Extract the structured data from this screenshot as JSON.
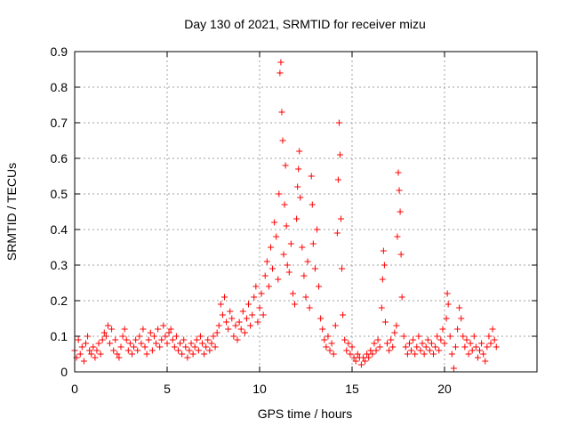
{
  "chart_data": {
    "type": "scatter",
    "title": "Day 130 of 2021, SRMTID for receiver mizu",
    "xlabel": "GPS time / hours",
    "ylabel": "SRMTID / TECUs",
    "xlim": [
      0,
      25
    ],
    "ylim": [
      0,
      0.9
    ],
    "xticks": [
      0,
      5,
      10,
      15,
      20
    ],
    "xtick_labels": [
      "0",
      "5",
      "10",
      "15",
      "20"
    ],
    "yticks": [
      0,
      0.1,
      0.2,
      0.3,
      0.4,
      0.5,
      0.6,
      0.7,
      0.8,
      0.9
    ],
    "ytick_labels": [
      "0",
      "0.1",
      "0.2",
      "0.3",
      "0.4",
      "0.5",
      "0.6",
      "0.7",
      "0.8",
      "0.9"
    ],
    "grid": true,
    "marker": "plus",
    "color": "#ff0000",
    "series": [
      {
        "name": "SRMTID",
        "points": [
          [
            0.0,
            0.06
          ],
          [
            0.1,
            0.04
          ],
          [
            0.2,
            0.09
          ],
          [
            0.3,
            0.05
          ],
          [
            0.4,
            0.07
          ],
          [
            0.5,
            0.03
          ],
          [
            0.6,
            0.08
          ],
          [
            0.7,
            0.1
          ],
          [
            0.8,
            0.06
          ],
          [
            0.9,
            0.05
          ],
          [
            1.0,
            0.07
          ],
          [
            1.1,
            0.04
          ],
          [
            1.2,
            0.06
          ],
          [
            1.3,
            0.08
          ],
          [
            1.4,
            0.05
          ],
          [
            1.5,
            0.09
          ],
          [
            1.6,
            0.11
          ],
          [
            1.7,
            0.1
          ],
          [
            1.8,
            0.13
          ],
          [
            1.9,
            0.08
          ],
          [
            2.0,
            0.12
          ],
          [
            2.1,
            0.06
          ],
          [
            2.2,
            0.09
          ],
          [
            2.3,
            0.05
          ],
          [
            2.4,
            0.04
          ],
          [
            2.5,
            0.07
          ],
          [
            2.6,
            0.1
          ],
          [
            2.7,
            0.12
          ],
          [
            2.8,
            0.09
          ],
          [
            2.9,
            0.06
          ],
          [
            3.0,
            0.08
          ],
          [
            3.1,
            0.05
          ],
          [
            3.2,
            0.07
          ],
          [
            3.3,
            0.09
          ],
          [
            3.4,
            0.06
          ],
          [
            3.5,
            0.1
          ],
          [
            3.6,
            0.08
          ],
          [
            3.7,
            0.12
          ],
          [
            3.8,
            0.07
          ],
          [
            3.9,
            0.05
          ],
          [
            4.0,
            0.09
          ],
          [
            4.1,
            0.11
          ],
          [
            4.2,
            0.06
          ],
          [
            4.3,
            0.1
          ],
          [
            4.4,
            0.08
          ],
          [
            4.5,
            0.12
          ],
          [
            4.6,
            0.07
          ],
          [
            4.7,
            0.09
          ],
          [
            4.8,
            0.13
          ],
          [
            4.9,
            0.1
          ],
          [
            5.0,
            0.08
          ],
          [
            5.1,
            0.11
          ],
          [
            5.2,
            0.12
          ],
          [
            5.3,
            0.09
          ],
          [
            5.4,
            0.07
          ],
          [
            5.5,
            0.1
          ],
          [
            5.6,
            0.06
          ],
          [
            5.7,
            0.08
          ],
          [
            5.8,
            0.05
          ],
          [
            5.9,
            0.09
          ],
          [
            6.0,
            0.07
          ],
          [
            6.1,
            0.04
          ],
          [
            6.2,
            0.06
          ],
          [
            6.3,
            0.08
          ],
          [
            6.4,
            0.05
          ],
          [
            6.5,
            0.07
          ],
          [
            6.6,
            0.09
          ],
          [
            6.7,
            0.06
          ],
          [
            6.8,
            0.1
          ],
          [
            6.9,
            0.08
          ],
          [
            7.0,
            0.05
          ],
          [
            7.1,
            0.07
          ],
          [
            7.2,
            0.09
          ],
          [
            7.3,
            0.06
          ],
          [
            7.4,
            0.08
          ],
          [
            7.5,
            0.1
          ],
          [
            7.6,
            0.07
          ],
          [
            7.7,
            0.11
          ],
          [
            7.8,
            0.13
          ],
          [
            7.9,
            0.19
          ],
          [
            8.0,
            0.16
          ],
          [
            8.1,
            0.21
          ],
          [
            8.2,
            0.14
          ],
          [
            8.3,
            0.12
          ],
          [
            8.4,
            0.17
          ],
          [
            8.5,
            0.15
          ],
          [
            8.6,
            0.1
          ],
          [
            8.7,
            0.13
          ],
          [
            8.8,
            0.09
          ],
          [
            8.9,
            0.14
          ],
          [
            9.0,
            0.12
          ],
          [
            9.1,
            0.17
          ],
          [
            9.2,
            0.11
          ],
          [
            9.3,
            0.15
          ],
          [
            9.4,
            0.19
          ],
          [
            9.5,
            0.13
          ],
          [
            9.6,
            0.16
          ],
          [
            9.7,
            0.21
          ],
          [
            9.8,
            0.24
          ],
          [
            9.9,
            0.14
          ],
          [
            10.0,
            0.18
          ],
          [
            10.1,
            0.22
          ],
          [
            10.2,
            0.16
          ],
          [
            10.3,
            0.27
          ],
          [
            10.4,
            0.31
          ],
          [
            10.5,
            0.24
          ],
          [
            10.6,
            0.35
          ],
          [
            10.7,
            0.29
          ],
          [
            10.8,
            0.42
          ],
          [
            10.9,
            0.38
          ],
          [
            11.0,
            0.26
          ],
          [
            11.05,
            0.5
          ],
          [
            11.1,
            0.84
          ],
          [
            11.15,
            0.87
          ],
          [
            11.2,
            0.73
          ],
          [
            11.25,
            0.65
          ],
          [
            11.3,
            0.33
          ],
          [
            11.35,
            0.47
          ],
          [
            11.4,
            0.58
          ],
          [
            11.45,
            0.41
          ],
          [
            11.5,
            0.3
          ],
          [
            11.6,
            0.28
          ],
          [
            11.7,
            0.36
          ],
          [
            11.8,
            0.22
          ],
          [
            11.9,
            0.19
          ],
          [
            12.0,
            0.43
          ],
          [
            12.05,
            0.52
          ],
          [
            12.1,
            0.57
          ],
          [
            12.15,
            0.62
          ],
          [
            12.2,
            0.49
          ],
          [
            12.3,
            0.35
          ],
          [
            12.4,
            0.27
          ],
          [
            12.5,
            0.21
          ],
          [
            12.6,
            0.31
          ],
          [
            12.7,
            0.18
          ],
          [
            12.8,
            0.55
          ],
          [
            12.85,
            0.47
          ],
          [
            12.9,
            0.36
          ],
          [
            13.0,
            0.29
          ],
          [
            13.1,
            0.4
          ],
          [
            13.2,
            0.24
          ],
          [
            13.3,
            0.15
          ],
          [
            13.4,
            0.12
          ],
          [
            13.5,
            0.09
          ],
          [
            13.6,
            0.07
          ],
          [
            13.7,
            0.1
          ],
          [
            13.8,
            0.06
          ],
          [
            13.9,
            0.08
          ],
          [
            14.0,
            0.05
          ],
          [
            14.1,
            0.13
          ],
          [
            14.2,
            0.39
          ],
          [
            14.25,
            0.54
          ],
          [
            14.3,
            0.7
          ],
          [
            14.35,
            0.61
          ],
          [
            14.4,
            0.43
          ],
          [
            14.45,
            0.29
          ],
          [
            14.5,
            0.16
          ],
          [
            14.6,
            0.09
          ],
          [
            14.7,
            0.06
          ],
          [
            14.8,
            0.08
          ],
          [
            14.9,
            0.05
          ],
          [
            15.0,
            0.07
          ],
          [
            15.1,
            0.04
          ],
          [
            15.2,
            0.03
          ],
          [
            15.3,
            0.05
          ],
          [
            15.4,
            0.04
          ],
          [
            15.5,
            0.02
          ],
          [
            15.6,
            0.04
          ],
          [
            15.7,
            0.03
          ],
          [
            15.8,
            0.05
          ],
          [
            15.9,
            0.04
          ],
          [
            16.0,
            0.06
          ],
          [
            16.1,
            0.05
          ],
          [
            16.2,
            0.08
          ],
          [
            16.3,
            0.06
          ],
          [
            16.4,
            0.09
          ],
          [
            16.5,
            0.07
          ],
          [
            16.6,
            0.18
          ],
          [
            16.65,
            0.26
          ],
          [
            16.7,
            0.34
          ],
          [
            16.75,
            0.3
          ],
          [
            16.8,
            0.14
          ],
          [
            16.9,
            0.08
          ],
          [
            17.0,
            0.06
          ],
          [
            17.1,
            0.09
          ],
          [
            17.2,
            0.07
          ],
          [
            17.3,
            0.11
          ],
          [
            17.4,
            0.13
          ],
          [
            17.45,
            0.38
          ],
          [
            17.5,
            0.56
          ],
          [
            17.55,
            0.51
          ],
          [
            17.6,
            0.45
          ],
          [
            17.65,
            0.33
          ],
          [
            17.7,
            0.21
          ],
          [
            17.8,
            0.1
          ],
          [
            17.9,
            0.07
          ],
          [
            18.0,
            0.05
          ],
          [
            18.1,
            0.08
          ],
          [
            18.2,
            0.06
          ],
          [
            18.3,
            0.09
          ],
          [
            18.4,
            0.05
          ],
          [
            18.5,
            0.07
          ],
          [
            18.6,
            0.1
          ],
          [
            18.7,
            0.06
          ],
          [
            18.8,
            0.08
          ],
          [
            18.9,
            0.05
          ],
          [
            19.0,
            0.07
          ],
          [
            19.1,
            0.09
          ],
          [
            19.2,
            0.06
          ],
          [
            19.3,
            0.08
          ],
          [
            19.4,
            0.05
          ],
          [
            19.5,
            0.07
          ],
          [
            19.6,
            0.1
          ],
          [
            19.7,
            0.06
          ],
          [
            19.8,
            0.09
          ],
          [
            19.9,
            0.12
          ],
          [
            20.0,
            0.08
          ],
          [
            20.1,
            0.15
          ],
          [
            20.15,
            0.22
          ],
          [
            20.2,
            0.19
          ],
          [
            20.3,
            0.1
          ],
          [
            20.4,
            0.05
          ],
          [
            20.5,
            0.01
          ],
          [
            20.6,
            0.07
          ],
          [
            20.7,
            0.12
          ],
          [
            20.8,
            0.18
          ],
          [
            20.9,
            0.15
          ],
          [
            21.0,
            0.1
          ],
          [
            21.1,
            0.07
          ],
          [
            21.2,
            0.09
          ],
          [
            21.3,
            0.05
          ],
          [
            21.4,
            0.08
          ],
          [
            21.5,
            0.06
          ],
          [
            21.6,
            0.1
          ],
          [
            21.7,
            0.07
          ],
          [
            21.8,
            0.04
          ],
          [
            21.9,
            0.06
          ],
          [
            22.0,
            0.08
          ],
          [
            22.1,
            0.05
          ],
          [
            22.2,
            0.03
          ],
          [
            22.3,
            0.07
          ],
          [
            22.4,
            0.1
          ],
          [
            22.5,
            0.08
          ],
          [
            22.6,
            0.12
          ],
          [
            22.7,
            0.09
          ],
          [
            22.8,
            0.07
          ]
        ]
      }
    ]
  }
}
